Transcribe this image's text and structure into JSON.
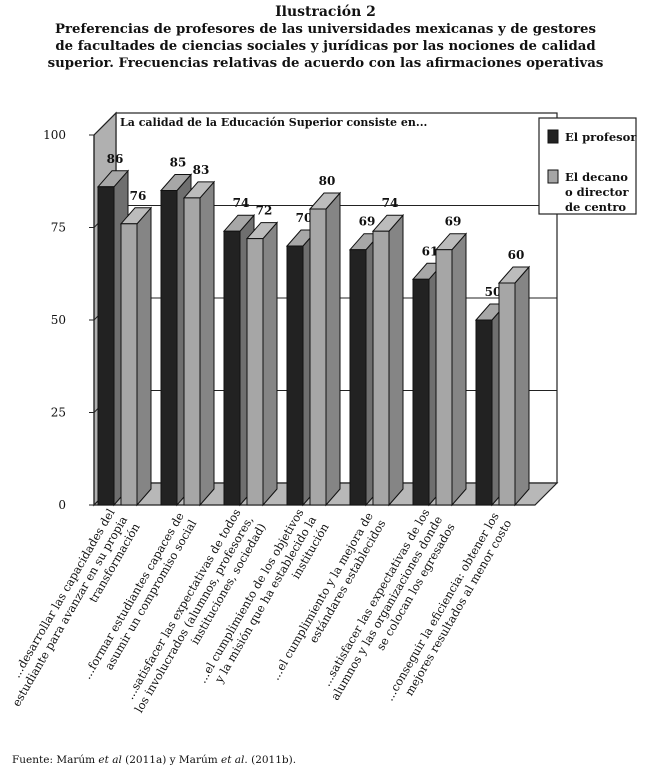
{
  "figure_label": "Ilustración 2",
  "figure_title": "Preferencias de profesores de las universidades mexicanas y de gestores de facultades de ciencias sociales y jurídicas por las nociones de calidad superior. Frecuencias relativas de acuerdo con las afirmaciones operativas",
  "source": {
    "prefix": "Fuente: Marúm ",
    "em1": "et al",
    "mid": " (2011a) y Marúm ",
    "em2": "et al",
    "suffix": ". (2011b)."
  },
  "chart_data": {
    "type": "bar",
    "style": "3d-clustered",
    "annotation": "La calidad de la Educación Superior consiste en...",
    "ylim": [
      0,
      100
    ],
    "yticks": [
      0,
      25,
      50,
      75,
      100
    ],
    "grid": true,
    "legend_position": "top-right",
    "categories": [
      [
        "...desarrollar las capacidades del",
        "estudiante para avanzar en su propia",
        "transformación"
      ],
      [
        "...formar estudiantes capaces de",
        "asumir un compromiso social"
      ],
      [
        "...satisfacer las expectativas de todos",
        "los involucrados (alumnos, profesores,",
        "instituciones, sociedad)"
      ],
      [
        "...el cumplimiento de los objetivos",
        "y la misión que ha establecido la",
        "institución"
      ],
      [
        "...el cumplimiento y la mejora de",
        "estándares establecidos"
      ],
      [
        "...satisfacer las expectativas de los",
        "alumnos y las organizaciones donde",
        "se colocan los egresados"
      ],
      [
        "...conseguir la eficiencia: obtener los",
        "mejores resultados al menor costo"
      ]
    ],
    "series": [
      {
        "name": "El profesor",
        "name_lines": [
          "El profesor"
        ],
        "color": "#222222",
        "values": [
          86,
          85,
          74,
          70,
          69,
          61,
          50
        ]
      },
      {
        "name": "El decano o director de centro",
        "name_lines": [
          "El decano",
          "o director",
          "de centro"
        ],
        "color": "#a6a6a6",
        "values": [
          76,
          83,
          72,
          80,
          74,
          69,
          60
        ]
      }
    ]
  }
}
